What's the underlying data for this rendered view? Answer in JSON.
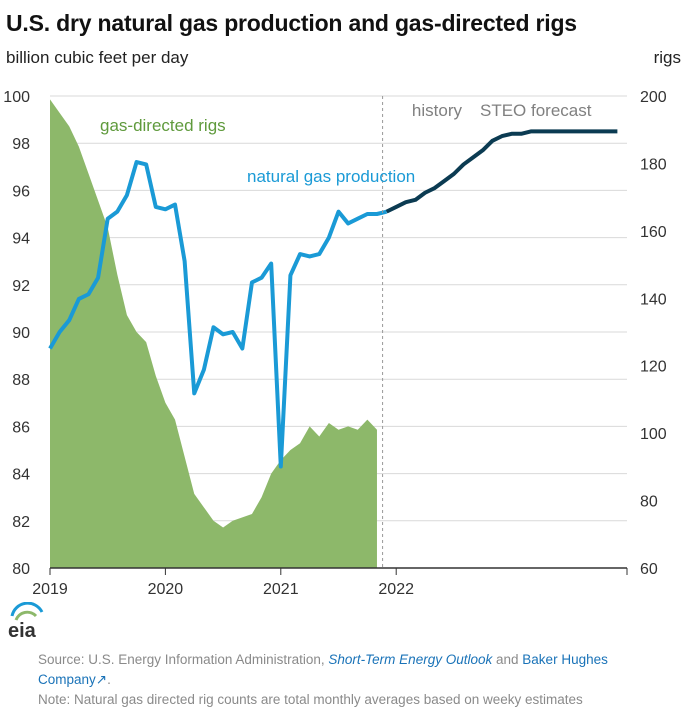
{
  "header": {
    "title": "U.S. dry natural gas production and gas-directed rigs",
    "left_axis_label": "billion cubic feet per day",
    "right_axis_label": "rigs"
  },
  "annotations": {
    "history": "history",
    "forecast": "STEO forecast",
    "rigs_series_label": "gas-directed rigs",
    "production_series_label": "natural gas production"
  },
  "footer": {
    "logo_text": "eia",
    "source_prefix": "Source: U.S. Energy Information Administration,",
    "source_link1": "Short-Term Energy Outlook",
    "source_and": "and",
    "source_link2": "Baker Hughes Company",
    "source_link2_suffix": ".",
    "note": "Note: Natural gas directed rig counts are total monthly averages based on weeky estimates"
  },
  "colors": {
    "production_history": "#1a9ad6",
    "production_forecast": "#0b3b52",
    "rigs_fill": "#8db86a",
    "rigs_label": "#5f9a3c",
    "production_label": "#1a9ad6",
    "grid": "#d9d9d9",
    "forecast_divider": "#999999"
  },
  "chart_data": {
    "type": "line",
    "x_axis": {
      "ticks": [
        "2019",
        "2020",
        "2021",
        "2022"
      ],
      "range": [
        "2019-01",
        "2023-12"
      ]
    },
    "y_left": {
      "label": "billion cubic feet per day",
      "ylim": [
        80,
        100
      ],
      "ticks": [
        80,
        82,
        84,
        86,
        88,
        90,
        92,
        94,
        96,
        98,
        100
      ]
    },
    "y_right": {
      "label": "rigs",
      "ylim": [
        60,
        200
      ],
      "ticks": [
        60,
        80,
        100,
        120,
        140,
        160,
        180,
        200
      ]
    },
    "grid": true,
    "forecast_start": "2021-12",
    "series": [
      {
        "name": "natural gas production",
        "axis": "left",
        "type": "line",
        "x": [
          "2019-01",
          "2019-02",
          "2019-03",
          "2019-04",
          "2019-05",
          "2019-06",
          "2019-07",
          "2019-08",
          "2019-09",
          "2019-10",
          "2019-11",
          "2019-12",
          "2020-01",
          "2020-02",
          "2020-03",
          "2020-04",
          "2020-05",
          "2020-06",
          "2020-07",
          "2020-08",
          "2020-09",
          "2020-10",
          "2020-11",
          "2020-12",
          "2021-01",
          "2021-02",
          "2021-03",
          "2021-04",
          "2021-05",
          "2021-06",
          "2021-07",
          "2021-08",
          "2021-09",
          "2021-10",
          "2021-11",
          "2021-12",
          "2022-01",
          "2022-02",
          "2022-03",
          "2022-04",
          "2022-05",
          "2022-06",
          "2022-07",
          "2022-08",
          "2022-09",
          "2022-10",
          "2022-11",
          "2022-12",
          "2023-01",
          "2023-02",
          "2023-03",
          "2023-04",
          "2023-05",
          "2023-06",
          "2023-07",
          "2023-08",
          "2023-09",
          "2023-10",
          "2023-11",
          "2023-12"
        ],
        "values": [
          89.3,
          90.0,
          90.5,
          91.4,
          91.6,
          92.3,
          94.8,
          95.1,
          95.8,
          97.2,
          97.1,
          95.3,
          95.2,
          95.4,
          93.0,
          87.4,
          88.4,
          90.2,
          89.9,
          90.0,
          89.3,
          92.1,
          92.3,
          92.9,
          84.3,
          92.4,
          93.3,
          93.2,
          93.3,
          94.0,
          95.1,
          94.6,
          94.8,
          95.0,
          95.0,
          95.1,
          95.3,
          95.5,
          95.6,
          95.9,
          96.1,
          96.4,
          96.7,
          97.1,
          97.4,
          97.7,
          98.1,
          98.3,
          98.4,
          98.4,
          98.5,
          98.5,
          98.5,
          98.5,
          98.5,
          98.5,
          98.5,
          98.5,
          98.5,
          98.5
        ],
        "forecast_from_index": 35
      },
      {
        "name": "gas-directed rigs",
        "axis": "right",
        "type": "area",
        "x": [
          "2019-01",
          "2019-02",
          "2019-03",
          "2019-04",
          "2019-05",
          "2019-06",
          "2019-07",
          "2019-08",
          "2019-09",
          "2019-10",
          "2019-11",
          "2019-12",
          "2020-01",
          "2020-02",
          "2020-03",
          "2020-04",
          "2020-05",
          "2020-06",
          "2020-07",
          "2020-08",
          "2020-09",
          "2020-10",
          "2020-11",
          "2020-12",
          "2021-01",
          "2021-02",
          "2021-03",
          "2021-04",
          "2021-05",
          "2021-06",
          "2021-07",
          "2021-08",
          "2021-09",
          "2021-10",
          "2021-11"
        ],
        "values": [
          199,
          195,
          191,
          185,
          177,
          169,
          161,
          147,
          135,
          130,
          127,
          117,
          109,
          104,
          93,
          82,
          78,
          74,
          72,
          74,
          75,
          76,
          81,
          88,
          92,
          95,
          97,
          102,
          99,
          103,
          101,
          102,
          101,
          104,
          101
        ]
      }
    ]
  }
}
